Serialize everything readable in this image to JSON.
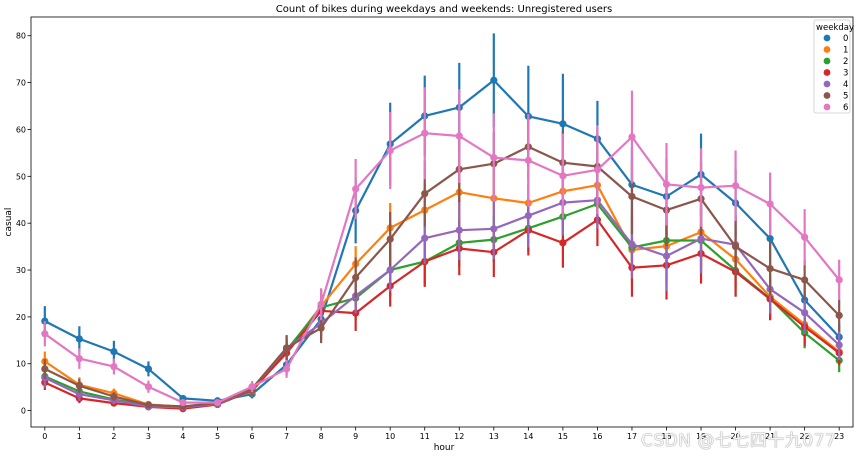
{
  "chart_data": {
    "type": "line",
    "title": "Count of bikes during weekdays and weekends: Unregistered users",
    "xlabel": "hour",
    "ylabel": "casual",
    "x": [
      0,
      1,
      2,
      3,
      4,
      5,
      6,
      7,
      8,
      9,
      10,
      11,
      12,
      13,
      14,
      15,
      16,
      17,
      18,
      19,
      20,
      21,
      22,
      23
    ],
    "x_tick_labels": [
      "0",
      "1",
      "2",
      "3",
      "4",
      "5",
      "6",
      "7",
      "8",
      "9",
      "10",
      "11",
      "12",
      "13",
      "14",
      "15",
      "16",
      "17",
      "18",
      "19",
      "20",
      "21",
      "22",
      "23"
    ],
    "xlim": [
      -0.4,
      23.4
    ],
    "ylim": [
      -3.5,
      84
    ],
    "yticks": [
      0,
      10,
      20,
      30,
      40,
      50,
      60,
      70,
      80
    ],
    "grid": false,
    "legend": {
      "title": "weekday",
      "position": "top-right"
    },
    "series": [
      {
        "name": "0",
        "color": "#1f77b4",
        "values": [
          19.1,
          15.3,
          12.6,
          8.9,
          2.6,
          2.1,
          3.5,
          9.8,
          19.5,
          42.7,
          56.9,
          62.9,
          64.7,
          70.5,
          62.8,
          61.2,
          58.0,
          48.2,
          45.7,
          50.4,
          44.3,
          36.7,
          23.6,
          15.7
        ],
        "err": [
          3.2,
          2.7,
          2.3,
          1.6,
          0.6,
          0.5,
          0.9,
          2.2,
          3.5,
          7.0,
          8.8,
          8.6,
          9.5,
          10.0,
          10.8,
          10.7,
          8.1,
          8.0,
          8.1,
          8.7,
          7.2,
          6.5,
          5.0,
          2.7
        ]
      },
      {
        "name": "1",
        "color": "#ff7f0e",
        "values": [
          10.5,
          5.5,
          3.7,
          1.3,
          0.8,
          1.6,
          4.1,
          12.6,
          22.3,
          31.3,
          39.0,
          42.8,
          46.6,
          45.3,
          44.3,
          46.8,
          48.1,
          34.3,
          35.1,
          38.1,
          32.3,
          24.3,
          18.4,
          12.6
        ],
        "err": [
          2.1,
          1.6,
          1.0,
          0.5,
          0.3,
          0.4,
          1.1,
          2.4,
          3.4,
          3.8,
          5.3,
          6.0,
          6.8,
          6.7,
          6.5,
          7.3,
          6.5,
          7.2,
          8.2,
          7.9,
          6.3,
          5.0,
          4.0,
          2.7
        ]
      },
      {
        "name": "2",
        "color": "#2ca02c",
        "values": [
          7.3,
          4.1,
          2.4,
          1.0,
          0.7,
          1.3,
          4.3,
          12.9,
          22.0,
          24.0,
          30.0,
          31.8,
          35.8,
          36.5,
          38.9,
          41.4,
          44.1,
          34.8,
          36.3,
          36.3,
          29.9,
          23.9,
          16.6,
          10.7
        ],
        "err": [
          1.8,
          1.2,
          0.8,
          0.4,
          0.3,
          0.4,
          1.2,
          2.6,
          4.0,
          4.7,
          5.7,
          5.1,
          5.1,
          4.8,
          5.0,
          5.1,
          5.3,
          5.2,
          6.0,
          7.0,
          5.5,
          4.4,
          3.3,
          2.5
        ]
      },
      {
        "name": "3",
        "color": "#d62728",
        "values": [
          6.0,
          2.6,
          1.6,
          0.8,
          0.4,
          1.3,
          4.4,
          12.3,
          21.3,
          20.8,
          26.6,
          31.8,
          34.6,
          33.8,
          38.5,
          35.8,
          40.7,
          30.5,
          31.0,
          33.5,
          29.6,
          23.8,
          17.9,
          12.3
        ],
        "err": [
          1.6,
          1.0,
          0.7,
          0.4,
          0.2,
          0.4,
          1.2,
          2.6,
          3.6,
          3.8,
          4.4,
          5.4,
          5.7,
          5.3,
          5.4,
          5.3,
          5.6,
          6.2,
          7.3,
          6.4,
          5.3,
          4.5,
          4.1,
          2.6
        ]
      },
      {
        "name": "4",
        "color": "#9467bd",
        "values": [
          7.0,
          3.5,
          2.2,
          0.9,
          0.7,
          1.4,
          4.6,
          13.3,
          18.6,
          24.5,
          30.0,
          36.8,
          38.5,
          38.8,
          41.6,
          44.4,
          44.9,
          35.5,
          33.0,
          36.7,
          35.4,
          25.9,
          20.9,
          14.0
        ],
        "err": [
          2.1,
          1.4,
          0.8,
          0.4,
          0.3,
          0.4,
          1.3,
          2.8,
          3.5,
          3.8,
          4.6,
          5.5,
          6.4,
          6.5,
          6.8,
          7.0,
          6.0,
          7.3,
          7.5,
          7.4,
          6.3,
          5.2,
          4.6,
          3.2
        ]
      },
      {
        "name": "5",
        "color": "#8c564b",
        "values": [
          8.9,
          5.3,
          3.0,
          1.2,
          0.9,
          1.6,
          4.7,
          13.4,
          17.6,
          28.4,
          36.6,
          46.3,
          51.5,
          52.7,
          56.3,
          52.9,
          52.1,
          45.7,
          42.8,
          45.2,
          35.0,
          30.3,
          27.9,
          20.3
        ],
        "err": [
          2.1,
          1.5,
          0.9,
          0.4,
          0.3,
          0.4,
          1.3,
          2.7,
          3.2,
          4.3,
          5.8,
          7.0,
          7.0,
          6.7,
          6.9,
          6.8,
          7.0,
          8.0,
          7.7,
          7.9,
          6.4,
          5.7,
          4.3,
          3.4
        ]
      },
      {
        "name": "6",
        "color": "#e377c2",
        "values": [
          16.4,
          11.1,
          9.4,
          5.1,
          1.7,
          1.7,
          5.1,
          8.9,
          22.7,
          47.3,
          55.5,
          59.2,
          58.6,
          54.0,
          53.4,
          50.1,
          51.4,
          58.4,
          48.3,
          47.6,
          48.0,
          44.1,
          37.0,
          27.9
        ],
        "err": [
          2.7,
          2.2,
          1.7,
          1.3,
          0.4,
          0.4,
          1.2,
          1.9,
          3.4,
          6.4,
          8.2,
          9.8,
          10.0,
          9.4,
          9.9,
          9.0,
          9.5,
          9.9,
          8.8,
          8.4,
          7.5,
          6.7,
          6.0,
          4.3
        ]
      }
    ]
  },
  "watermark": "CSDN @七七四十九077"
}
